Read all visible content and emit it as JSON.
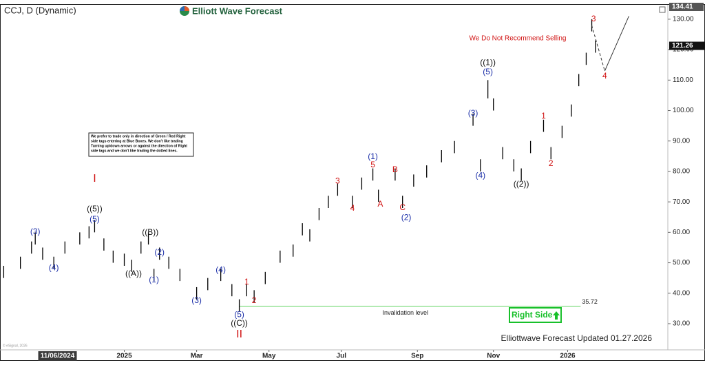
{
  "chart_data": {
    "type": "range-bar",
    "title": "CCJ, D (Dynamic)",
    "brand": "Elliott Wave Forecast",
    "warning": "We Do Not Recommend Selling",
    "note_lines": [
      "We prefer to trade only in direction of Green / Red Right",
      "side tags entering at Blue Boxes. We don't like trading",
      "Turning up/down arrows or against the direction of Right",
      "side tags and we don't like trading the dotted lines."
    ],
    "footer": "Elliottwave Forecast Updated 01.27.2026",
    "copyright": "© eSignal, 2026",
    "right_side": "Right Side",
    "x": [
      2,
      11,
      17,
      19,
      23,
      29,
      35,
      43,
      48,
      51,
      56,
      61,
      67,
      71,
      76,
      80,
      83,
      86,
      91,
      97,
      106,
      112,
      119,
      125,
      129,
      133,
      137,
      143,
      151,
      158,
      163,
      167,
      172,
      177,
      182,
      190,
      195,
      201,
      204,
      213,
      217,
      223,
      230,
      238,
      245,
      255,
      259,
      263,
      266,
      271,
      277,
      281,
      286,
      293,
      297,
      303,
      308,
      312,
      316,
      319,
      321
    ],
    "high": [
      49,
      52,
      57,
      60,
      55,
      52,
      57,
      60,
      62,
      64,
      58,
      54,
      53,
      51,
      57,
      60,
      48,
      55,
      52,
      48,
      42,
      45,
      48,
      43,
      38,
      43,
      41,
      47,
      54,
      56,
      63,
      61,
      68,
      72,
      76,
      72,
      78,
      81,
      74,
      81,
      72,
      79,
      82,
      87,
      90,
      99,
      84,
      110,
      104,
      88,
      84,
      81,
      90,
      97,
      88,
      95,
      102,
      112,
      119,
      130,
      123
    ],
    "low": [
      45,
      48,
      53,
      56,
      51,
      48,
      53,
      56,
      58,
      60,
      54,
      50,
      49,
      47,
      53,
      56,
      44,
      51,
      48,
      44,
      38,
      41,
      44,
      39,
      34,
      39,
      37,
      43,
      50,
      52,
      59,
      57,
      64,
      68,
      72,
      68,
      74,
      77,
      70,
      77,
      68,
      75,
      78,
      83,
      86,
      95,
      80,
      104,
      100,
      84,
      80,
      77,
      86,
      93,
      84,
      91,
      98,
      108,
      115,
      126,
      119
    ],
    "color": "#000000",
    "xlim": [
      0,
      360
    ],
    "ylim": [
      21.4,
      134.5
    ],
    "xticks": [
      {
        "value": 67,
        "label": "2025"
      },
      {
        "value": 106,
        "label": "Mar"
      },
      {
        "value": 145,
        "label": "May"
      },
      {
        "value": 184,
        "label": "Jul"
      },
      {
        "value": 225,
        "label": "Sep"
      },
      {
        "value": 266,
        "label": "Nov"
      },
      {
        "value": 306,
        "label": "2026"
      }
    ],
    "cursor": {
      "x": 31,
      "label": "11/06/2024"
    },
    "yticks": [
      {
        "value": 30,
        "label": "30.00"
      },
      {
        "value": 40,
        "label": "40.00"
      },
      {
        "value": 50,
        "label": "50.00"
      },
      {
        "value": 60,
        "label": "60.00"
      },
      {
        "value": 70,
        "label": "70.00"
      },
      {
        "value": 80,
        "label": "80.00"
      },
      {
        "value": 90,
        "label": "90.00"
      },
      {
        "value": 100,
        "label": "100.00"
      },
      {
        "value": 110,
        "label": "110.00"
      },
      {
        "value": 120,
        "label": "120.00"
      },
      {
        "value": 130,
        "label": "130.00"
      }
    ],
    "top_price": 134.41,
    "last_price": 121.26,
    "invalidation": {
      "value": 35.72,
      "label": "Invalidation level",
      "x": [
        129,
        313
      ],
      "color": "#5fd35f"
    },
    "projection": {
      "x": [
        319,
        326,
        339
      ],
      "y": [
        128,
        113,
        131
      ]
    },
    "annotations": [
      {
        "text": "I",
        "x": 51,
        "y": 77.5,
        "color": "#d01010",
        "size": 16
      },
      {
        "text": "((5))",
        "x": 51,
        "y": 67.6,
        "color": "#111111",
        "size": 12
      },
      {
        "text": "(5)",
        "x": 51,
        "y": 64.2,
        "color": "#1c2fa8",
        "size": 12
      },
      {
        "text": "(3)",
        "x": 19,
        "y": 60.1,
        "color": "#1c2fa8",
        "size": 12
      },
      {
        "text": "(4)",
        "x": 29,
        "y": 48.3,
        "color": "#1c2fa8",
        "size": 12
      },
      {
        "text": "((A))",
        "x": 72,
        "y": 46.3,
        "color": "#111111",
        "size": 12
      },
      {
        "text": "((B))",
        "x": 81,
        "y": 59.9,
        "color": "#111111",
        "size": 12
      },
      {
        "text": "(1)",
        "x": 83,
        "y": 44.3,
        "color": "#1c2fa8",
        "size": 12
      },
      {
        "text": "(2)",
        "x": 86,
        "y": 53.3,
        "color": "#1c2fa8",
        "size": 12
      },
      {
        "text": "(3)",
        "x": 106,
        "y": 37.5,
        "color": "#1c2fa8",
        "size": 12
      },
      {
        "text": "(4)",
        "x": 119,
        "y": 47.6,
        "color": "#1c2fa8",
        "size": 12
      },
      {
        "text": "(5)",
        "x": 129,
        "y": 32.9,
        "color": "#1c2fa8",
        "size": 12
      },
      {
        "text": "((C))",
        "x": 129,
        "y": 30,
        "color": "#111111",
        "size": 12
      },
      {
        "text": "II",
        "x": 129,
        "y": 26.4,
        "color": "#d01010",
        "size": 16
      },
      {
        "text": "1",
        "x": 133,
        "y": 43.6,
        "color": "#d01010",
        "size": 12
      },
      {
        "text": "2",
        "x": 137,
        "y": 37.5,
        "color": "#d01010",
        "size": 12
      },
      {
        "text": "3",
        "x": 182,
        "y": 76.8,
        "color": "#d01010",
        "size": 12
      },
      {
        "text": "4",
        "x": 190,
        "y": 67.8,
        "color": "#d01010",
        "size": 12
      },
      {
        "text": "(1)",
        "x": 201,
        "y": 84.8,
        "color": "#1c2fa8",
        "size": 12
      },
      {
        "text": "5",
        "x": 201,
        "y": 82.1,
        "color": "#d01010",
        "size": 12
      },
      {
        "text": "A",
        "x": 205,
        "y": 69.2,
        "color": "#d01010",
        "size": 12
      },
      {
        "text": "B",
        "x": 213,
        "y": 80.5,
        "color": "#d01010",
        "size": 12
      },
      {
        "text": "C",
        "x": 217,
        "y": 68,
        "color": "#d01010",
        "size": 12
      },
      {
        "text": "(2)",
        "x": 219,
        "y": 64.8,
        "color": "#1c2fa8",
        "size": 12
      },
      {
        "text": "(3)",
        "x": 255,
        "y": 99,
        "color": "#1c2fa8",
        "size": 12
      },
      {
        "text": "(4)",
        "x": 259,
        "y": 78.6,
        "color": "#1c2fa8",
        "size": 12
      },
      {
        "text": "((1))",
        "x": 263,
        "y": 115.7,
        "color": "#111111",
        "size": 12
      },
      {
        "text": "(5)",
        "x": 263,
        "y": 112.6,
        "color": "#1c2fa8",
        "size": 12
      },
      {
        "text": "((2))",
        "x": 281,
        "y": 75.7,
        "color": "#111111",
        "size": 12
      },
      {
        "text": "1",
        "x": 293,
        "y": 98.1,
        "color": "#d01010",
        "size": 12
      },
      {
        "text": "2",
        "x": 297,
        "y": 82.5,
        "color": "#d01010",
        "size": 12
      },
      {
        "text": "3",
        "x": 320,
        "y": 130,
        "color": "#d01010",
        "size": 12
      },
      {
        "text": "4",
        "x": 326,
        "y": 111.2,
        "color": "#d01010",
        "size": 12
      }
    ]
  }
}
